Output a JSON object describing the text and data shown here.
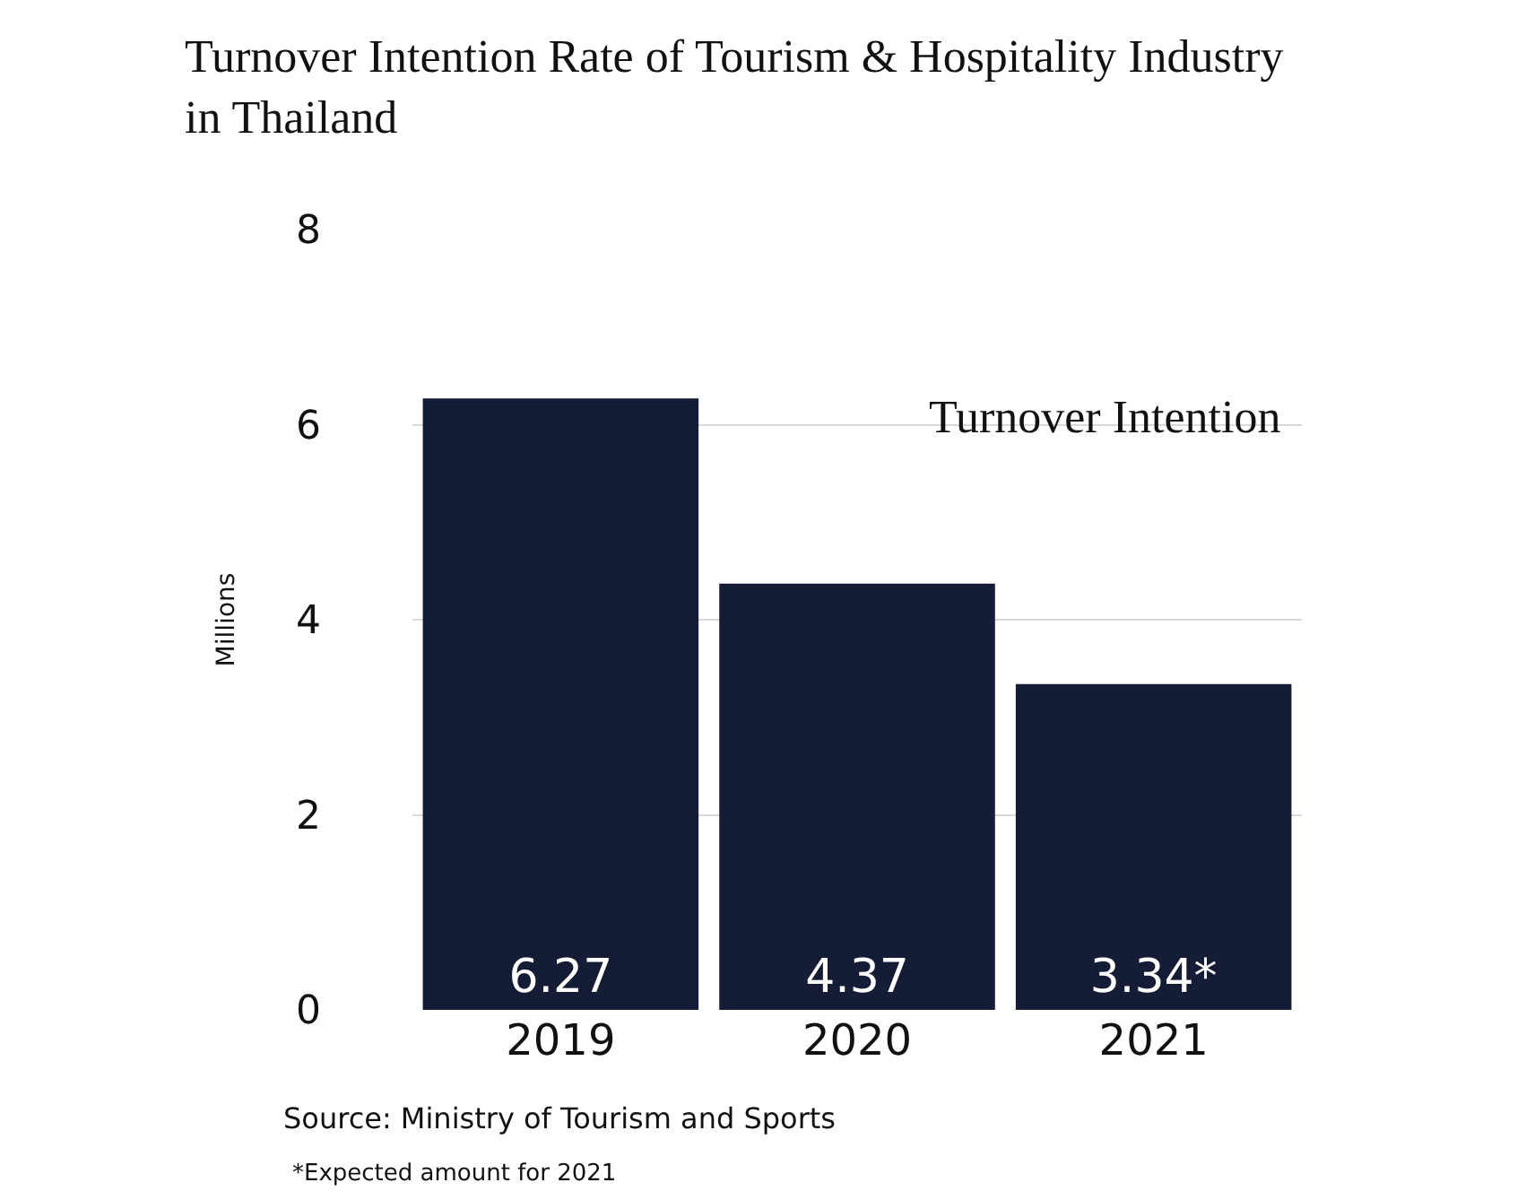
{
  "chart_data": {
    "type": "bar",
    "title": "Turnover Intention Rate of Tourism & Hospitality Industry in Thailand",
    "ylabel": "Millions",
    "categories": [
      "2019",
      "2020",
      "2021"
    ],
    "values": [
      6.27,
      4.37,
      3.34
    ],
    "value_labels": [
      "6.27",
      "4.37",
      "3.34*"
    ],
    "color": "#141c36",
    "ylim": [
      0,
      8
    ],
    "yticks": [
      0,
      2,
      4,
      6,
      8
    ],
    "grid": "y",
    "legend": false,
    "annotations": [
      "Turnover Intention",
      "Source: Ministry of Tourism and Sports",
      "*Expected amount for 2021"
    ]
  }
}
